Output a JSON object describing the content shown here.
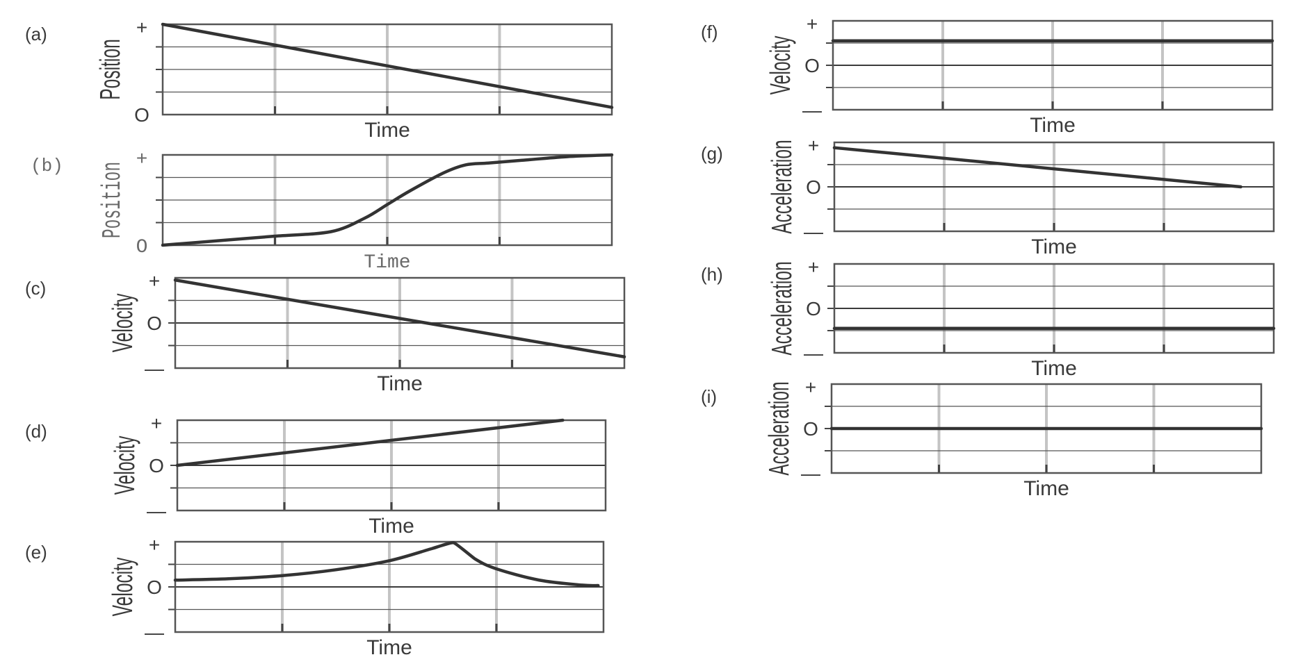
{
  "chart_data": [
    {
      "id": "a",
      "panel_label": "(a)",
      "type": "line",
      "xlabel": "Time",
      "ylabel": "Position",
      "y_tick_labels": [
        "+",
        "O"
      ],
      "ylim": [
        0,
        1
      ],
      "grid": true,
      "x": [
        0,
        4
      ],
      "series": [
        {
          "values": [
            1.0,
            0.08
          ]
        }
      ]
    },
    {
      "id": "b",
      "panel_label": "(b)",
      "type": "line",
      "xlabel": "Time",
      "ylabel": "Position",
      "y_tick_labels": [
        "+",
        "O"
      ],
      "ylim": [
        0,
        1
      ],
      "grid": true,
      "x": [
        0,
        0.5,
        1,
        1.5,
        1.8,
        2,
        2.2,
        2.5,
        2.7,
        2.9,
        3.2,
        3.6,
        4
      ],
      "series": [
        {
          "values": [
            0,
            0.05,
            0.1,
            0.15,
            0.3,
            0.45,
            0.6,
            0.8,
            0.89,
            0.91,
            0.94,
            0.98,
            1.0
          ]
        }
      ]
    },
    {
      "id": "c",
      "panel_label": "(c)",
      "type": "line",
      "xlabel": "Time",
      "ylabel": "Velocity",
      "y_tick_labels": [
        "+",
        "O",
        "—"
      ],
      "ylim": [
        -1,
        1
      ],
      "grid": true,
      "x": [
        0,
        4
      ],
      "series": [
        {
          "values": [
            0.95,
            -0.75
          ]
        }
      ]
    },
    {
      "id": "d",
      "panel_label": "(d)",
      "type": "line",
      "xlabel": "Time",
      "ylabel": "Velocity",
      "y_tick_labels": [
        "+",
        "O",
        "—"
      ],
      "ylim": [
        -1,
        1
      ],
      "grid": true,
      "x": [
        0,
        3.6
      ],
      "series": [
        {
          "values": [
            0,
            1.0
          ]
        }
      ]
    },
    {
      "id": "e",
      "panel_label": "(e)",
      "type": "line",
      "xlabel": "Time",
      "ylabel": "Velocity",
      "y_tick_labels": [
        "+",
        "O",
        "—"
      ],
      "ylim": [
        -1,
        1
      ],
      "grid": true,
      "x": [
        0,
        0.5,
        1,
        1.5,
        2,
        2.4,
        2.6,
        2.8,
        3,
        3.4,
        3.8,
        3.95
      ],
      "series": [
        {
          "values": [
            0.15,
            0.18,
            0.25,
            0.38,
            0.58,
            0.85,
            0.98,
            0.62,
            0.4,
            0.15,
            0.04,
            0.03
          ]
        }
      ]
    },
    {
      "id": "f",
      "panel_label": "(f)",
      "type": "line",
      "xlabel": "Time",
      "ylabel": "Velocity",
      "y_tick_labels": [
        "+",
        "O",
        "—"
      ],
      "ylim": [
        -1,
        1
      ],
      "grid": true,
      "x": [
        0,
        4
      ],
      "series": [
        {
          "values": [
            0.55,
            0.55
          ]
        }
      ]
    },
    {
      "id": "g",
      "panel_label": "(g)",
      "type": "line",
      "xlabel": "Time",
      "ylabel": "Acceleration",
      "y_tick_labels": [
        "+",
        "O",
        "—"
      ],
      "ylim": [
        -1,
        1
      ],
      "grid": true,
      "x": [
        0,
        3.7
      ],
      "series": [
        {
          "values": [
            0.88,
            0
          ]
        }
      ]
    },
    {
      "id": "h",
      "panel_label": "(h)",
      "type": "line",
      "xlabel": "Time",
      "ylabel": "Acceleration",
      "y_tick_labels": [
        "+",
        "O",
        "—"
      ],
      "ylim": [
        -1,
        1
      ],
      "grid": true,
      "x": [
        0,
        4
      ],
      "series": [
        {
          "values": [
            -0.45,
            -0.45
          ]
        }
      ]
    },
    {
      "id": "i",
      "panel_label": "(i)",
      "type": "line",
      "xlabel": "Time",
      "ylabel": "Acceleration",
      "y_tick_labels": [
        "+",
        "O",
        "—"
      ],
      "ylim": [
        -1,
        1
      ],
      "grid": true,
      "x": [
        0,
        4
      ],
      "series": [
        {
          "values": [
            0,
            0
          ]
        }
      ]
    }
  ],
  "style": {
    "curve_color": "#333333",
    "grid_color": "#c4c4c4",
    "frame_color": "#555555"
  }
}
